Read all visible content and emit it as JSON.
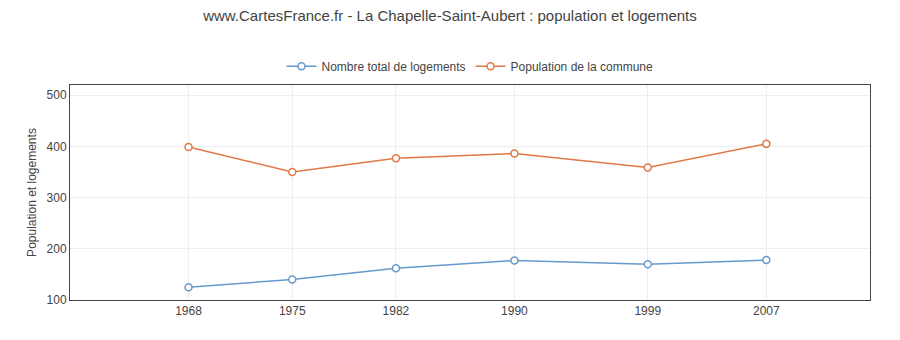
{
  "chart_data": {
    "type": "line",
    "title": "www.CartesFrance.fr - La Chapelle-Saint-Aubert : population et logements",
    "ylabel": "Population et logements",
    "x": [
      1968,
      1975,
      1982,
      1990,
      1999,
      2007
    ],
    "series": [
      {
        "name": "Nombre total de logements",
        "color": "#6699cc",
        "marker": "circle",
        "values": [
          125,
          140,
          162,
          177,
          170,
          178
        ]
      },
      {
        "name": "Population de la commune",
        "color": "#e07848",
        "marker": "circle",
        "values": [
          399,
          350,
          377,
          386,
          359,
          405
        ]
      }
    ],
    "xlim": [
      1960,
      2014
    ],
    "xticks": [
      1968,
      1975,
      1982,
      1990,
      1999,
      2007
    ],
    "ylim": [
      100,
      520
    ],
    "yticks": [
      100,
      200,
      300,
      400,
      500
    ],
    "grid": true,
    "legend": "top"
  }
}
